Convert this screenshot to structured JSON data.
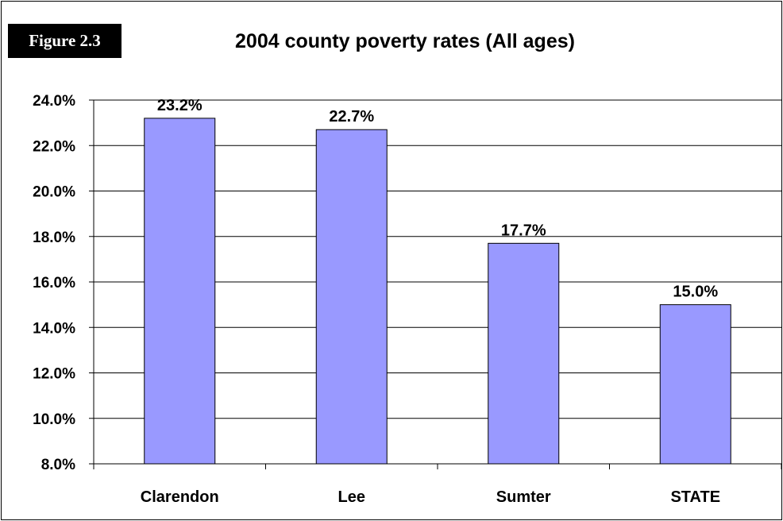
{
  "figure_label": "Figure 2.3",
  "chart_data": {
    "type": "bar",
    "title": "2004 county poverty rates (All ages)",
    "categories": [
      "Clarendon",
      "Lee",
      "Sumter",
      "STATE"
    ],
    "values": [
      23.2,
      22.7,
      17.7,
      15.0
    ],
    "data_labels": [
      "23.2%",
      "22.7%",
      "17.7%",
      "15.0%"
    ],
    "ylim": [
      8.0,
      24.0
    ],
    "y_ticks": [
      8.0,
      10.0,
      12.0,
      14.0,
      16.0,
      18.0,
      20.0,
      22.0,
      24.0
    ],
    "y_tick_labels": [
      "8.0%",
      "10.0%",
      "12.0%",
      "14.0%",
      "16.0%",
      "18.0%",
      "20.0%",
      "22.0%",
      "24.0%"
    ],
    "xlabel": "",
    "ylabel": "",
    "grid": true,
    "legend": "none",
    "bar_color": "#9999ff",
    "bar_stroke": "#000000"
  }
}
